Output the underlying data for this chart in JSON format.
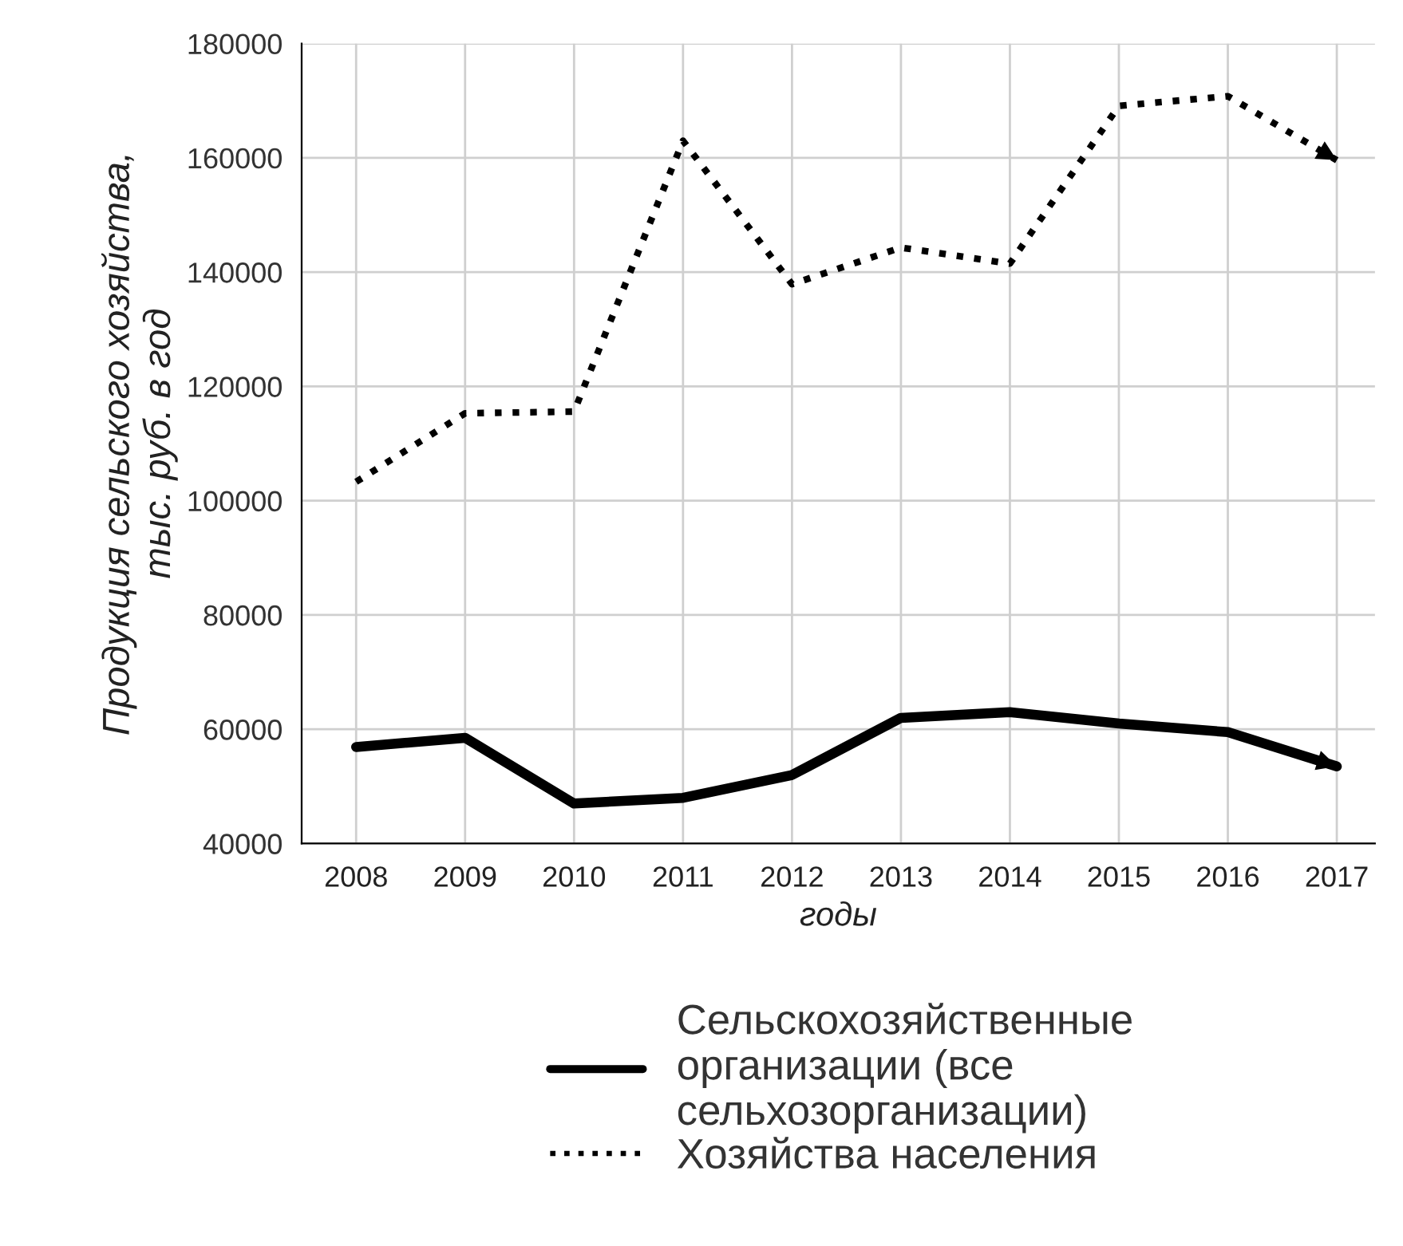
{
  "chart_data": {
    "type": "line",
    "xlabel": "годы",
    "ylabel": "Продукция сельского хозяйства,\nтыс. руб. в год",
    "categories": [
      "2008",
      "2009",
      "2010",
      "2011",
      "2012",
      "2013",
      "2014",
      "2015",
      "2016",
      "2017"
    ],
    "series": [
      {
        "name": "Сельскохозяйственные\nорганизации (все\nсельхозорганизации)",
        "color": "#000000",
        "line_style": "solid",
        "values": [
          56900,
          58500,
          47000,
          48000,
          52000,
          62000,
          63000,
          61000,
          59500,
          53500
        ]
      },
      {
        "name": "Хозяйства населения",
        "color": "#000000",
        "line_style": "dotted",
        "values": [
          103300,
          115300,
          115600,
          163000,
          137900,
          144300,
          141500,
          169100,
          170800,
          159600
        ]
      }
    ],
    "ylim": [
      40000,
      180000
    ],
    "yticks": [
      40000,
      60000,
      80000,
      100000,
      120000,
      140000,
      160000,
      180000
    ],
    "grid": true,
    "legend": "bottom",
    "marker": "none"
  }
}
